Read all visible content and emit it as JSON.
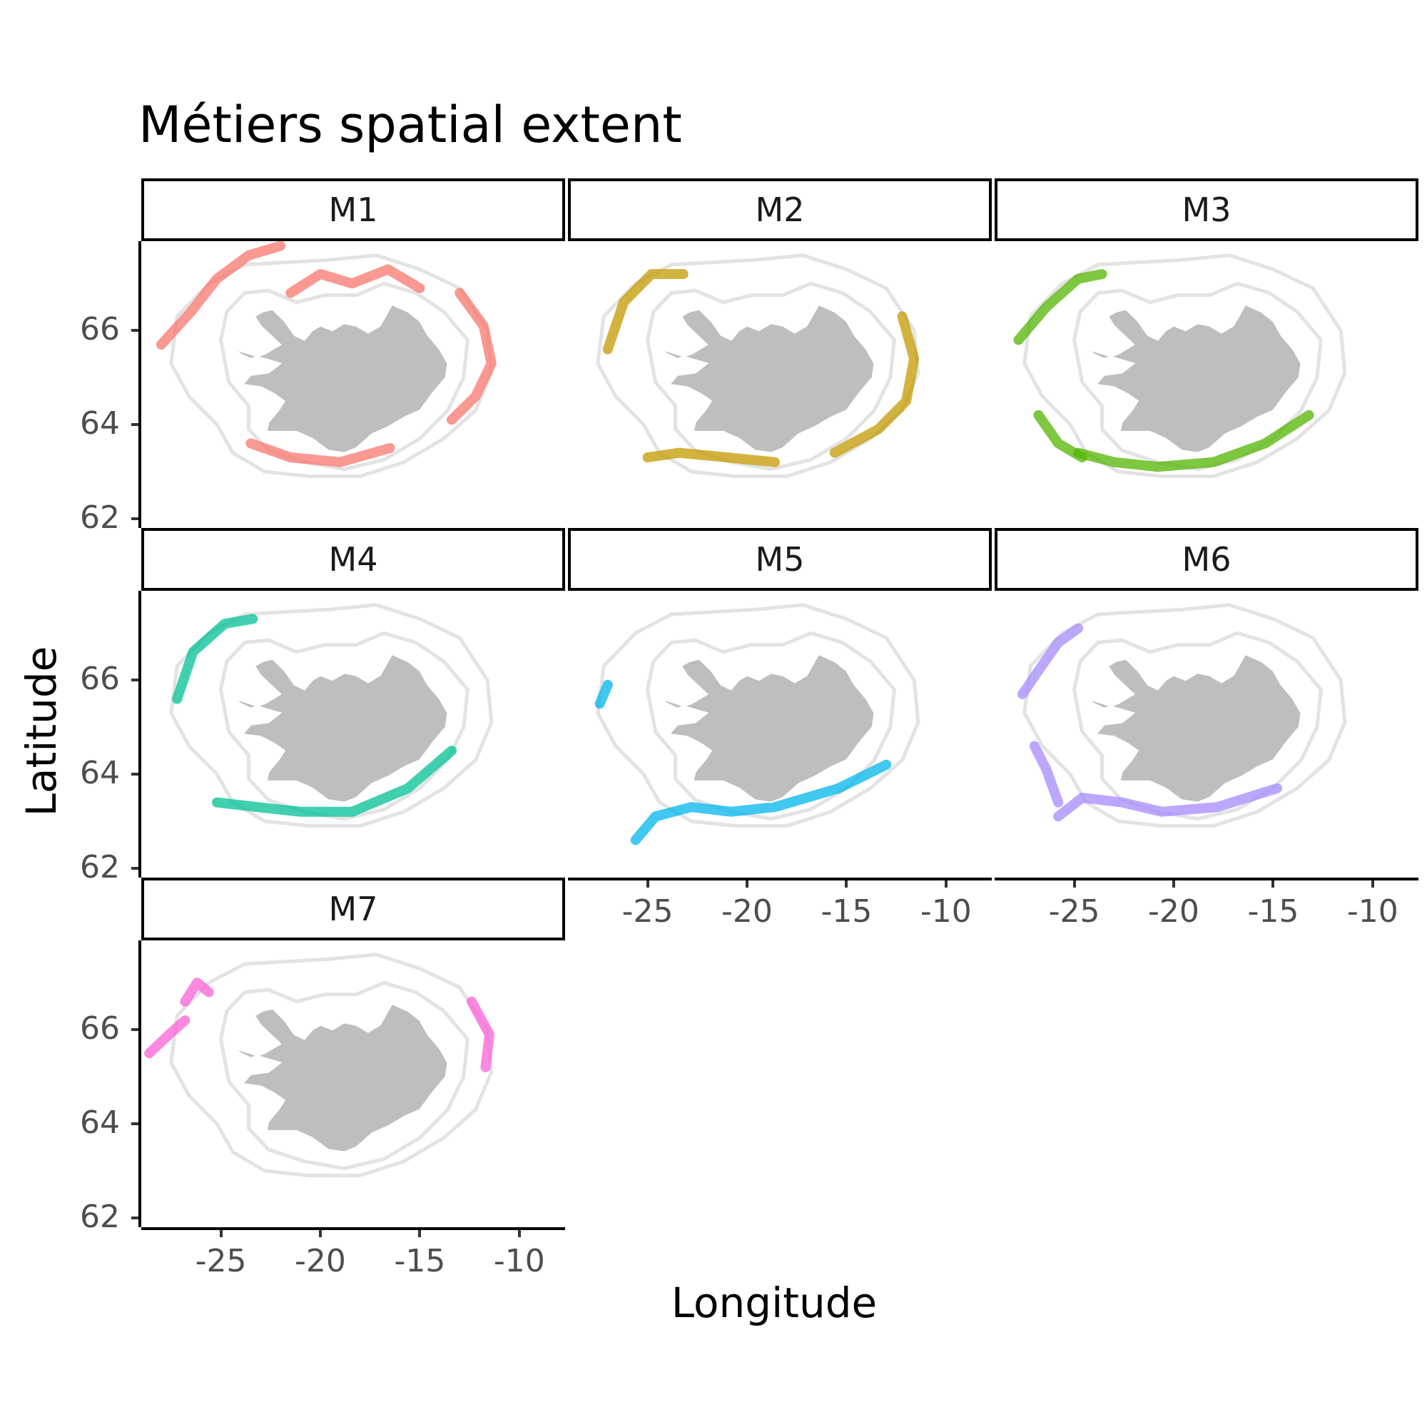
{
  "title": "Métiers spatial extent",
  "x_axis_label": "Longitude",
  "y_axis_label": "Latitude",
  "chart_data": {
    "type": "scatter",
    "title": "Métiers spatial extent",
    "xlabel": "Longitude",
    "ylabel": "Latitude",
    "xlim": [
      -29,
      -7.7
    ],
    "ylim": [
      61.8,
      67.9
    ],
    "x_ticks": [
      "-25",
      "-20",
      "-15",
      "-10"
    ],
    "y_ticks": [
      "62",
      "64",
      "66"
    ],
    "facets": [
      {
        "label": "M1",
        "color": "#F8766D"
      },
      {
        "label": "M2",
        "color": "#C49A00"
      },
      {
        "label": "M3",
        "color": "#53B400"
      },
      {
        "label": "M4",
        "color": "#00C094"
      },
      {
        "label": "M5",
        "color": "#00B6EB"
      },
      {
        "label": "M6",
        "color": "#A58AFF"
      },
      {
        "label": "M7",
        "color": "#FB61D7"
      }
    ],
    "background": {
      "land_color": "#BEBEBE",
      "contour_color": "#E3E3E3"
    },
    "grid": false,
    "legend": "none"
  }
}
